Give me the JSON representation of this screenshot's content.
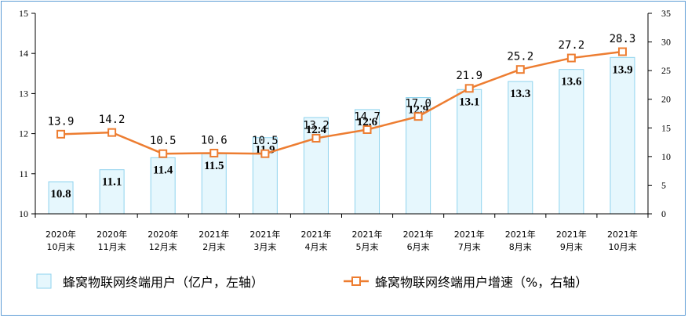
{
  "chart_data": {
    "type": "bar",
    "categories": [
      [
        "2020年",
        "10月末"
      ],
      [
        "2020年",
        "11月末"
      ],
      [
        "2020年",
        "12月末"
      ],
      [
        "2021年",
        "2月末"
      ],
      [
        "2021年",
        "3月末"
      ],
      [
        "2021年",
        "4月末"
      ],
      [
        "2021年",
        "5月末"
      ],
      [
        "2021年",
        "6月末"
      ],
      [
        "2021年",
        "7月末"
      ],
      [
        "2021年",
        "8月末"
      ],
      [
        "2021年",
        "9月末"
      ],
      [
        "2021年",
        "10月末"
      ]
    ],
    "series": [
      {
        "name": "蜂窝物联网终端用户（亿户，左轴）",
        "type": "bar",
        "axis": "left",
        "values": [
          10.8,
          11.1,
          11.4,
          11.5,
          11.9,
          12.4,
          12.6,
          12.9,
          13.1,
          13.3,
          13.6,
          13.9
        ],
        "labels": [
          "10.8",
          "11.1",
          "11.4",
          "11.5",
          "11.9",
          "12.4",
          "12.6",
          "12.9",
          "13.1",
          "13.3",
          "13.6",
          "13.9"
        ]
      },
      {
        "name": "蜂窝物联网终端用户增速（%，右轴）",
        "type": "line",
        "axis": "right",
        "values": [
          13.9,
          14.2,
          10.5,
          10.6,
          10.5,
          13.2,
          14.7,
          17.0,
          21.9,
          25.2,
          27.2,
          28.3
        ],
        "labels": [
          "13.9",
          "14.2",
          "10.5",
          "10.6",
          "10.5",
          "13.2",
          "14.7",
          "17.0",
          "21.9",
          "25.2",
          "27.2",
          "28.3"
        ]
      }
    ],
    "y_left": {
      "min": 10,
      "max": 15,
      "ticks": [
        "10",
        "11",
        "12",
        "13",
        "14",
        "15"
      ]
    },
    "y_right": {
      "min": 0,
      "max": 35,
      "ticks": [
        "0",
        "5",
        "10",
        "15",
        "20",
        "25",
        "30",
        "35"
      ]
    },
    "grid": false,
    "legend_position": "bottom",
    "colors": {
      "bar_fill": "#e6f7fd",
      "bar_stroke": "#8fd3ee",
      "line": "#ed7d31",
      "marker_fill": "#ffffff",
      "axis": "#000000",
      "frame": "#5b9bd5"
    }
  }
}
